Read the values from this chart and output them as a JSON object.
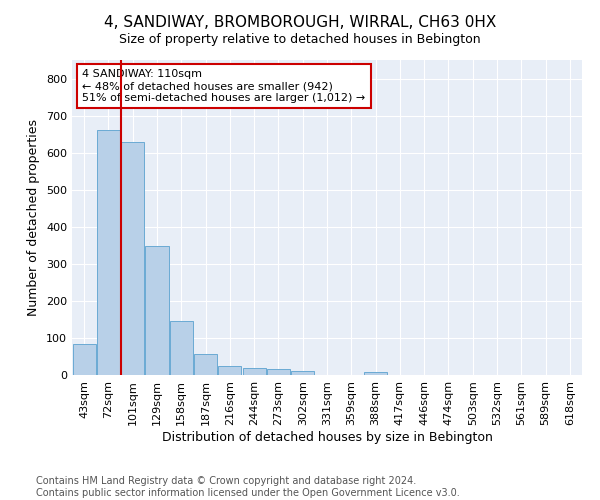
{
  "title": "4, SANDIWAY, BROMBOROUGH, WIRRAL, CH63 0HX",
  "subtitle": "Size of property relative to detached houses in Bebington",
  "xlabel": "Distribution of detached houses by size in Bebington",
  "ylabel": "Number of detached properties",
  "categories": [
    "43sqm",
    "72sqm",
    "101sqm",
    "129sqm",
    "158sqm",
    "187sqm",
    "216sqm",
    "244sqm",
    "273sqm",
    "302sqm",
    "331sqm",
    "359sqm",
    "388sqm",
    "417sqm",
    "446sqm",
    "474sqm",
    "503sqm",
    "532sqm",
    "561sqm",
    "589sqm",
    "618sqm"
  ],
  "values": [
    83,
    660,
    628,
    348,
    147,
    57,
    24,
    19,
    16,
    11,
    0,
    0,
    9,
    0,
    0,
    0,
    0,
    0,
    0,
    0,
    0
  ],
  "bar_color": "#b8d0e8",
  "bar_edge_color": "#6aaad4",
  "background_color": "#e8eef7",
  "grid_color": "#ffffff",
  "vline_color": "#cc0000",
  "annotation_text": "4 SANDIWAY: 110sqm\n← 48% of detached houses are smaller (942)\n51% of semi-detached houses are larger (1,012) →",
  "annotation_box_color": "#ffffff",
  "annotation_box_edge": "#cc0000",
  "ylim": [
    0,
    850
  ],
  "yticks": [
    0,
    100,
    200,
    300,
    400,
    500,
    600,
    700,
    800
  ],
  "footer": "Contains HM Land Registry data © Crown copyright and database right 2024.\nContains public sector information licensed under the Open Government Licence v3.0.",
  "title_fontsize": 11,
  "xlabel_fontsize": 9,
  "ylabel_fontsize": 9,
  "tick_fontsize": 8,
  "footer_fontsize": 7,
  "annot_fontsize": 8
}
